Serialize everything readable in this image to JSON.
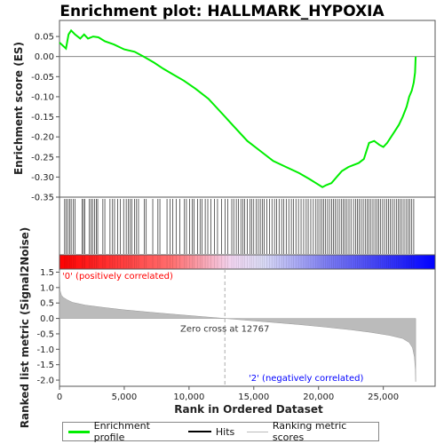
{
  "chart_data": {
    "type": "line",
    "title": "Enrichment plot: HALLMARK_HYPOXIA",
    "xlabel": "Rank in Ordered Dataset",
    "xlim": [
      0,
      29000
    ],
    "xticks": [
      0,
      5000,
      10000,
      15000,
      20000,
      25000
    ],
    "xtick_labels": [
      "0",
      "5,000",
      "10,000",
      "15,000",
      "20,000",
      "25,000"
    ],
    "es_panel": {
      "ylabel": "Enrichment score (ES)",
      "ylim": [
        -0.35,
        0.09
      ],
      "yticks": [
        0.05,
        0.0,
        -0.05,
        -0.1,
        -0.15,
        -0.2,
        -0.25,
        -0.3,
        -0.35
      ],
      "ytick_labels": [
        "0.05",
        "0.00",
        "-0.05",
        "-0.10",
        "-0.15",
        "-0.20",
        "-0.25",
        "-0.30",
        "-0.35"
      ],
      "series": [
        {
          "name": "Enrichment profile",
          "color": "#00ee00",
          "x": [
            0,
            500,
            700,
            900,
            1200,
            1600,
            1900,
            2200,
            2600,
            3000,
            3500,
            4200,
            5000,
            5800,
            6500,
            7300,
            8000,
            8800,
            9600,
            10500,
            11500,
            12500,
            13500,
            14500,
            15500,
            16500,
            17500,
            18500,
            19300,
            19800,
            20300,
            20600,
            21000,
            21400,
            21800,
            22300,
            22700,
            23100,
            23500,
            23900,
            24300,
            24700,
            25000,
            25300,
            25600,
            25900,
            26200,
            26500,
            26800,
            27000,
            27200,
            27350,
            27450,
            27500
          ],
          "y": [
            0.035,
            0.02,
            0.055,
            0.065,
            0.055,
            0.045,
            0.055,
            0.045,
            0.05,
            0.048,
            0.038,
            0.03,
            0.018,
            0.012,
            0.0,
            -0.015,
            -0.03,
            -0.045,
            -0.06,
            -0.08,
            -0.105,
            -0.14,
            -0.175,
            -0.21,
            -0.235,
            -0.26,
            -0.275,
            -0.29,
            -0.305,
            -0.315,
            -0.325,
            -0.32,
            -0.315,
            -0.3,
            -0.285,
            -0.275,
            -0.27,
            -0.265,
            -0.255,
            -0.215,
            -0.21,
            -0.22,
            -0.225,
            -0.215,
            -0.2,
            -0.185,
            -0.17,
            -0.15,
            -0.125,
            -0.1,
            -0.085,
            -0.065,
            -0.04,
            0.0
          ]
        }
      ]
    },
    "hits_panel": {
      "legend_label": "Hits",
      "hit_positions": [
        400,
        520,
        650,
        780,
        900,
        1050,
        1200,
        1750,
        1850,
        1950,
        2300,
        2420,
        2550,
        2700,
        2850,
        2950,
        3350,
        3500,
        3900,
        4100,
        4250,
        4500,
        4700,
        4950,
        5150,
        5300,
        5450,
        5600,
        5800,
        5950,
        6100,
        6550,
        6700,
        7200,
        7600,
        7750,
        8300,
        8550,
        8750,
        9000,
        9300,
        9650,
        9800,
        10050,
        10250,
        10400,
        10650,
        10850,
        11000,
        11250,
        11450,
        11700,
        11950,
        12200,
        12500,
        12800,
        13000,
        13300,
        13450,
        13650,
        13800,
        14000,
        14150,
        14300,
        14500,
        14700,
        14850,
        15000,
        15200,
        15350,
        15500,
        15650,
        15800,
        16000,
        16200,
        16400,
        16600,
        16750,
        16950,
        17150,
        17300,
        17500,
        17700,
        17900,
        18050,
        18250,
        18450,
        18650,
        18850,
        19050,
        19200,
        19400,
        19600,
        19800,
        19950,
        20100,
        20250,
        20400,
        20550,
        20700,
        20850,
        21000,
        21150,
        21300,
        21450,
        21600,
        21750,
        21900,
        22050,
        22200,
        22350,
        22500,
        22700,
        22850,
        23000,
        23150,
        23300,
        23450,
        23600,
        23750,
        23900,
        24050,
        24200,
        24350,
        24500,
        24650,
        24800,
        24950,
        25100,
        25250,
        25400,
        25550,
        25700,
        25850,
        26000,
        26150,
        26300,
        26450,
        26600,
        26750,
        26900,
        27050,
        27200,
        27350
      ]
    },
    "metric_panel": {
      "ylabel": "Ranked list metric (Signal2Noise)",
      "legend_label": "Ranking metric scores",
      "ylim": [
        -2.2,
        1.6
      ],
      "yticks": [
        1.5,
        1.0,
        0.5,
        0.0,
        -0.5,
        -1.0,
        -1.5,
        -2.0
      ],
      "ytick_labels": [
        "1.5",
        "1.0",
        "0.5",
        "0.0",
        "-0.5",
        "-1.0",
        "-1.5",
        "-2.0"
      ],
      "x": [
        0,
        50,
        150,
        300,
        600,
        1000,
        2000,
        3500,
        5000,
        7000,
        9000,
        11000,
        12767,
        14500,
        16500,
        18500,
        20500,
        22500,
        24000,
        25500,
        26500,
        27000,
        27250,
        27400,
        27480,
        27500
      ],
      "y": [
        1.55,
        0.9,
        0.75,
        0.68,
        0.6,
        0.52,
        0.43,
        0.35,
        0.28,
        0.2,
        0.13,
        0.06,
        0.0,
        -0.06,
        -0.13,
        -0.2,
        -0.28,
        -0.37,
        -0.45,
        -0.55,
        -0.65,
        -0.78,
        -0.95,
        -1.25,
        -1.7,
        -2.05
      ],
      "color": "#bbbbbb",
      "zero_cross_label": "Zero cross at 12767",
      "zero_cross_rank": 12767,
      "pos_label": "'0' (positively correlated)",
      "neg_label": "'2' (negatively correlated)",
      "pos_color": "#ff0000",
      "neg_color": "#0000ff"
    },
    "legend": {
      "position": "bottom",
      "entries": [
        "Enrichment profile",
        "Hits",
        "Ranking metric scores"
      ]
    },
    "grid": false
  }
}
